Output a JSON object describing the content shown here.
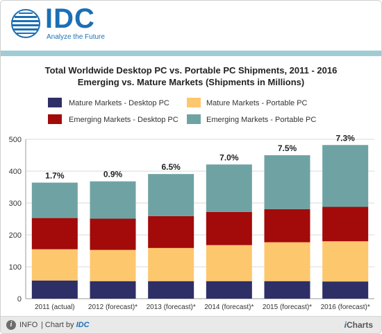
{
  "brand": {
    "logo_text": "IDC",
    "tagline": "Analyze the Future"
  },
  "chart_data": {
    "type": "bar",
    "stacked": true,
    "title_line1": "Total Worldwide Desktop PC vs. Portable PC Shipments, 2011 - 2016",
    "title_line2": "Emerging vs. Mature Markets (Shipments in Millions)",
    "categories": [
      "2011 (actual)",
      "2012 (forecast)*",
      "2013 (forecast)*",
      "2014 (forecast)*",
      "2015 (forecast)*",
      "2016 (forecast)*"
    ],
    "series": [
      {
        "name": "Mature Markets - Desktop PC",
        "color": "#2e2f67",
        "values": [
          57,
          55,
          55,
          55,
          55,
          54
        ]
      },
      {
        "name": "Mature Markets - Portable PC",
        "color": "#fdc76e",
        "values": [
          98,
          98,
          104,
          113,
          122,
          126
        ]
      },
      {
        "name": "Emerging Markets - Desktop PC",
        "color": "#a30a0a",
        "values": [
          98,
          98,
          100,
          104,
          104,
          108
        ]
      },
      {
        "name": "Emerging Markets - Portable PC",
        "color": "#6fa3a3",
        "values": [
          111,
          117,
          132,
          149,
          169,
          194
        ]
      }
    ],
    "data_labels": [
      "1.7%",
      "0.9%",
      "6.5%",
      "7.0%",
      "7.5%",
      "7.3%"
    ],
    "ylim": [
      0,
      500
    ],
    "yticks": [
      0,
      100,
      200,
      300,
      400,
      500
    ],
    "grid": true,
    "legend_position": "top"
  },
  "footer": {
    "info_label": "INFO",
    "chart_by_label": "| Chart by",
    "chart_by_brand": "IDC",
    "icharts": "iCharts",
    "icharts_i": "i",
    "icharts_rest": "Charts"
  }
}
